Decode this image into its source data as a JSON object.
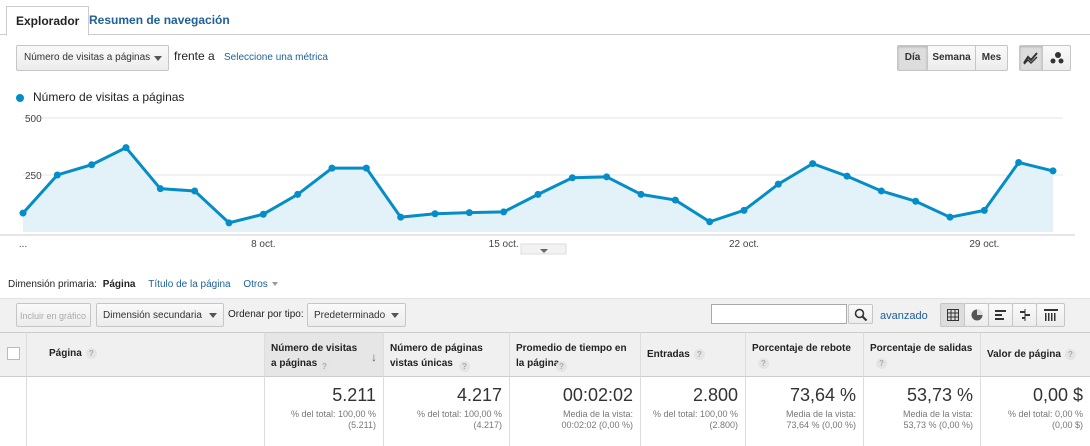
{
  "tabs": {
    "active": "Explorador",
    "other": "Resumen de navegación"
  },
  "metric_bar": {
    "metric": "Número de visitas a páginas",
    "versus": "frente a",
    "select_metric": "Seleccione una métrica",
    "granularity": [
      "Día",
      "Semana",
      "Mes"
    ],
    "selected_granularity": "Día"
  },
  "legend": {
    "series_name": "Número de visitas a páginas",
    "color": "#058dc7"
  },
  "chart_data": {
    "type": "area",
    "series": [
      {
        "name": "Número de visitas a páginas",
        "values": [
          83,
          250,
          295,
          370,
          190,
          180,
          40,
          78,
          165,
          280,
          280,
          65,
          80,
          85,
          88,
          165,
          238,
          242,
          165,
          140,
          45,
          95,
          210,
          300,
          245,
          180,
          135,
          65,
          95,
          305,
          268
        ]
      }
    ],
    "ytick_labels": [
      "500",
      "250"
    ],
    "yticks": [
      500,
      250
    ],
    "ylim": [
      0,
      500
    ],
    "x_labels": [
      {
        "index": 0,
        "label": "..."
      },
      {
        "index": 7,
        "label": "8 oct."
      },
      {
        "index": 14,
        "label": "15 oct."
      },
      {
        "index": 21,
        "label": "22 oct."
      },
      {
        "index": 28,
        "label": "29 oct."
      }
    ],
    "line_color": "#058dc7",
    "fill_color": "#e3f1f8"
  },
  "dimension": {
    "label": "Dimensión primaria:",
    "active": "Página",
    "options": [
      "Título de la página",
      "Otros"
    ]
  },
  "toolbar": {
    "include_chart": "Incluir en gráfico",
    "secondary": "Dimensión secundaria",
    "sort_label": "Ordenar por tipo:",
    "sort_value": "Predeterminado",
    "search_value": "",
    "advanced": "avanzado"
  },
  "table": {
    "headers": [
      "Página",
      "Número de visitas a páginas",
      "Número de páginas vistas únicas",
      "Promedio de tiempo en la página",
      "Entradas",
      "Porcentaje de rebote",
      "Porcentaje de salidas",
      "Valor de página"
    ],
    "totals": [
      {
        "value": "5.211",
        "sub1": "% del total: 100,00 %",
        "sub2": "(5.211)"
      },
      {
        "value": "4.217",
        "sub1": "% del total: 100,00 %",
        "sub2": "(4.217)"
      },
      {
        "value": "00:02:02",
        "sub1": "Media de la vista:",
        "sub2": "00:02:02 (0,00 %)"
      },
      {
        "value": "2.800",
        "sub1": "% del total: 100,00 %",
        "sub2": "(2.800)"
      },
      {
        "value": "73,64 %",
        "sub1": "Media de la vista:",
        "sub2": "73,64 % (0,00 %)"
      },
      {
        "value": "53,73 %",
        "sub1": "Media de la vista:",
        "sub2": "53,73 % (0,00 %)"
      },
      {
        "value": "0,00 $",
        "sub1": "% del total: 0,00 %",
        "sub2": "(0,00 $)"
      }
    ]
  }
}
